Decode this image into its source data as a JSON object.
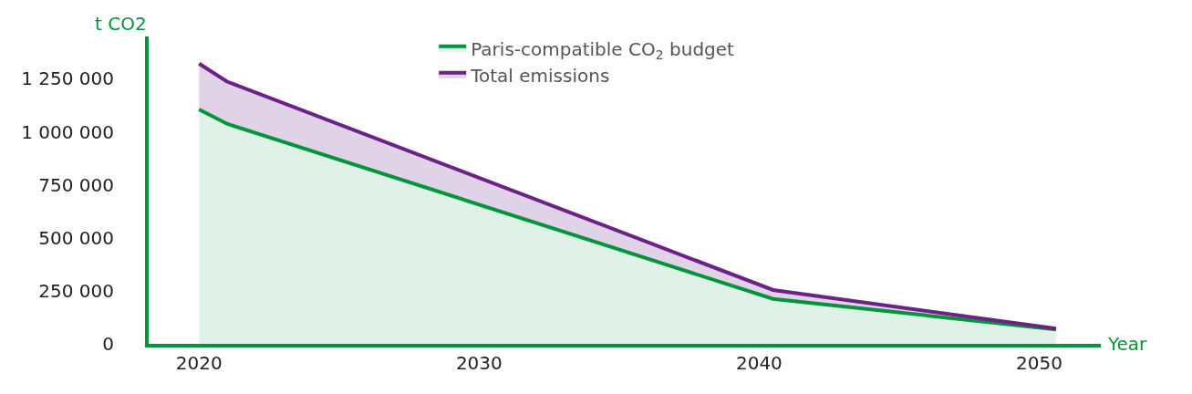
{
  "chart_data": {
    "type": "area",
    "xlabel": "Year",
    "ylabel": "t CO2",
    "x": [
      2020,
      2021,
      2040.5,
      2050.6
    ],
    "series": [
      {
        "name": "Paris-compatible CO$_{2}$ budget",
        "color": "#00953a",
        "values": [
          1106000,
          1038000,
          212000,
          68000
        ]
      },
      {
        "name": "Total emissions",
        "color": "#6b2185",
        "values": [
          1322000,
          1237000,
          254000,
          72000
        ]
      }
    ],
    "xlim": [
      2018.2,
      2052.2
    ],
    "xticks": [
      2020,
      2030,
      2040,
      2050
    ],
    "ylim": [
      0,
      1450000
    ],
    "yticks": [
      {
        "value": 0,
        "label": "0"
      },
      {
        "value": 250000,
        "label": "250 000"
      },
      {
        "value": 500000,
        "label": "500 000"
      },
      {
        "value": 750000,
        "label": "750 000"
      },
      {
        "value": 1000000,
        "label": "1 000 000"
      },
      {
        "value": 1250000,
        "label": "1 250 000"
      }
    ],
    "legend": "top",
    "marker": "none",
    "line_style": "solid"
  }
}
